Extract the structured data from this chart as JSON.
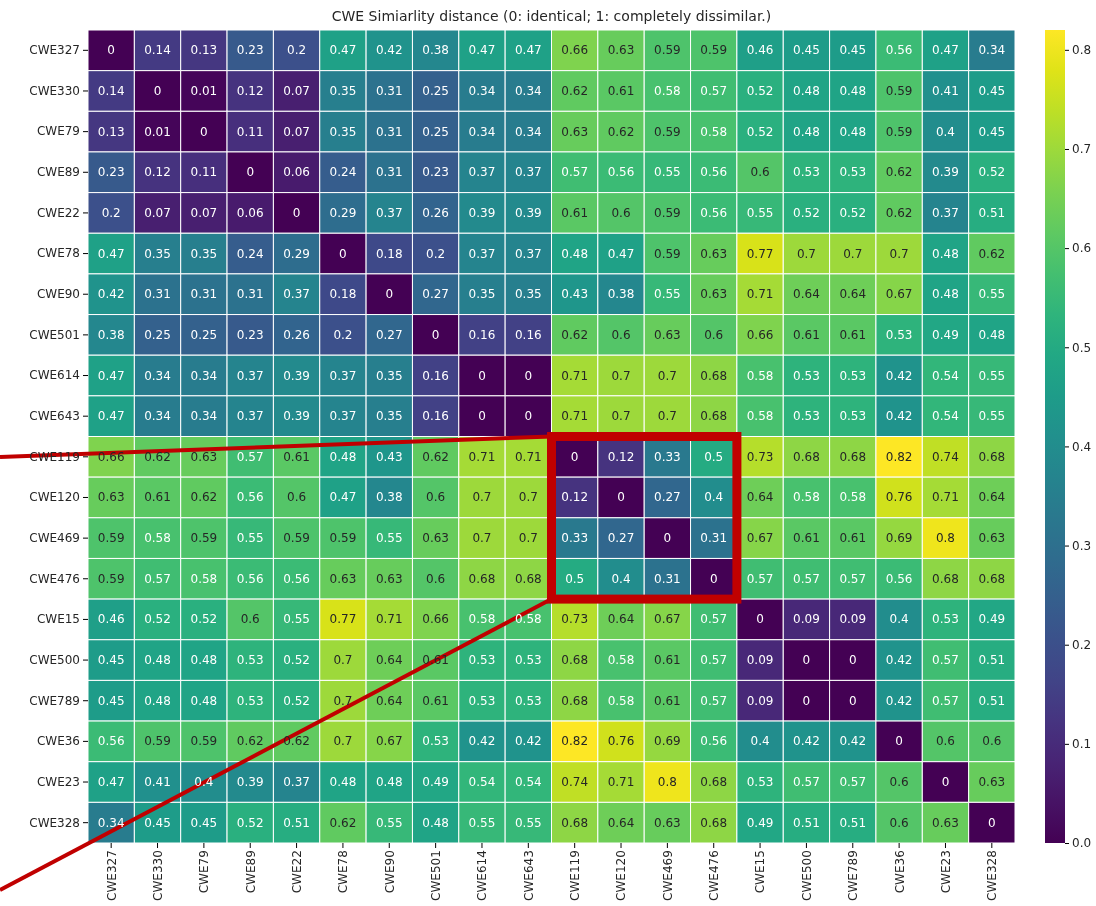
{
  "chart_data": {
    "type": "heatmap",
    "title": "CWE Simiarlity distance (0: identical; 1: completely dissimilar.)",
    "categories": [
      "CWE327",
      "CWE330",
      "CWE79",
      "CWE89",
      "CWE22",
      "CWE78",
      "CWE90",
      "CWE501",
      "CWE614",
      "CWE643",
      "CWE119",
      "CWE120",
      "CWE469",
      "CWE476",
      "CWE15",
      "CWE500",
      "CWE789",
      "CWE36",
      "CWE23",
      "CWE328"
    ],
    "y_categories": [
      "CWE327",
      "CWE330",
      "CWE79",
      "CWE89",
      "CWE22",
      "CWE78",
      "CWE90",
      "CWE501",
      "CWE614",
      "CWE643",
      "CWE119",
      "CWE120",
      "CWE469",
      "CWE476",
      "CWE15",
      "CWE500",
      "CWE789",
      "CWE36",
      "CWE23",
      "CWE328"
    ],
    "cells": [
      [
        0,
        0.14,
        0.13,
        0.23,
        0.2,
        0.47,
        0.42,
        0.38,
        0.47,
        0.47,
        0.66,
        0.63,
        0.59,
        0.59,
        0.46,
        0.45,
        0.45,
        0.56,
        0.47,
        0.34
      ],
      [
        0.14,
        0,
        0.01,
        0.12,
        0.07,
        0.35,
        0.31,
        0.25,
        0.34,
        0.34,
        0.62,
        0.61,
        0.58,
        0.57,
        0.52,
        0.48,
        0.48,
        0.59,
        0.41,
        0.45
      ],
      [
        0.13,
        0.01,
        0,
        0.11,
        0.07,
        0.35,
        0.31,
        0.25,
        0.34,
        0.34,
        0.63,
        0.62,
        0.59,
        0.58,
        0.52,
        0.48,
        0.48,
        0.59,
        0.4,
        0.45
      ],
      [
        0.23,
        0.12,
        0.11,
        0,
        0.06,
        0.24,
        0.31,
        0.23,
        0.37,
        0.37,
        0.57,
        0.56,
        0.55,
        0.56,
        0.6,
        0.53,
        0.53,
        0.62,
        0.39,
        0.52
      ],
      [
        0.2,
        0.07,
        0.07,
        0.06,
        0,
        0.29,
        0.37,
        0.26,
        0.39,
        0.39,
        0.61,
        0.6,
        0.59,
        0.56,
        0.55,
        0.52,
        0.52,
        0.62,
        0.37,
        0.51
      ],
      [
        0.47,
        0.35,
        0.35,
        0.24,
        0.29,
        0,
        0.18,
        0.2,
        0.37,
        0.37,
        0.48,
        0.47,
        0.59,
        0.63,
        0.77,
        0.7,
        0.7,
        0.7,
        0.48,
        0.62
      ],
      [
        0.42,
        0.31,
        0.31,
        0.31,
        0.37,
        0.18,
        0,
        0.27,
        0.35,
        0.35,
        0.43,
        0.38,
        0.55,
        0.63,
        0.71,
        0.64,
        0.64,
        0.67,
        0.48,
        0.55
      ],
      [
        0.38,
        0.25,
        0.25,
        0.23,
        0.26,
        0.2,
        0.27,
        0,
        0.16,
        0.16,
        0.62,
        0.6,
        0.63,
        0.6,
        0.66,
        0.61,
        0.61,
        0.53,
        0.49,
        0.48
      ],
      [
        0.47,
        0.34,
        0.34,
        0.37,
        0.39,
        0.37,
        0.35,
        0.16,
        0,
        0,
        0.71,
        0.7,
        0.7,
        0.68,
        0.58,
        0.53,
        0.53,
        0.42,
        0.54,
        0.55
      ],
      [
        0.47,
        0.34,
        0.34,
        0.37,
        0.39,
        0.37,
        0.35,
        0.16,
        0,
        0,
        0.71,
        0.7,
        0.7,
        0.68,
        0.58,
        0.53,
        0.53,
        0.42,
        0.54,
        0.55
      ],
      [
        0.66,
        0.62,
        0.63,
        0.57,
        0.61,
        0.48,
        0.43,
        0.62,
        0.71,
        0.71,
        0,
        0.12,
        0.33,
        0.5,
        0.73,
        0.68,
        0.68,
        0.82,
        0.74,
        0.68
      ],
      [
        0.63,
        0.61,
        0.62,
        0.56,
        0.6,
        0.47,
        0.38,
        0.6,
        0.7,
        0.7,
        0.12,
        0,
        0.27,
        0.4,
        0.64,
        0.58,
        0.58,
        0.76,
        0.71,
        0.64
      ],
      [
        0.59,
        0.58,
        0.59,
        0.55,
        0.59,
        0.59,
        0.55,
        0.63,
        0.7,
        0.7,
        0.33,
        0.27,
        0,
        0.31,
        0.67,
        0.61,
        0.61,
        0.69,
        0.8,
        0.63
      ],
      [
        0.59,
        0.57,
        0.58,
        0.56,
        0.56,
        0.63,
        0.63,
        0.6,
        0.68,
        0.68,
        0.5,
        0.4,
        0.31,
        0,
        0.57,
        0.57,
        0.57,
        0.56,
        0.68,
        0.68
      ],
      [
        0.46,
        0.52,
        0.52,
        0.6,
        0.55,
        0.77,
        0.71,
        0.66,
        0.58,
        0.58,
        0.73,
        0.64,
        0.67,
        0.57,
        0,
        0.09,
        0.09,
        0.4,
        0.53,
        0.49
      ],
      [
        0.45,
        0.48,
        0.48,
        0.53,
        0.52,
        0.7,
        0.64,
        0.61,
        0.53,
        0.53,
        0.68,
        0.58,
        0.61,
        0.57,
        0.09,
        0,
        0,
        0.42,
        0.57,
        0.51
      ],
      [
        0.45,
        0.48,
        0.48,
        0.53,
        0.52,
        0.7,
        0.64,
        0.61,
        0.53,
        0.53,
        0.68,
        0.58,
        0.61,
        0.57,
        0.09,
        0,
        0,
        0.42,
        0.57,
        0.51
      ],
      [
        0.56,
        0.59,
        0.59,
        0.62,
        0.62,
        0.7,
        0.67,
        0.53,
        0.42,
        0.42,
        0.82,
        0.76,
        0.69,
        0.56,
        0.4,
        0.42,
        0.42,
        0,
        0.6,
        0.6
      ],
      [
        0.47,
        0.41,
        0.4,
        0.39,
        0.37,
        0.48,
        0.48,
        0.49,
        0.54,
        0.54,
        0.74,
        0.71,
        0.8,
        0.68,
        0.53,
        0.57,
        0.57,
        0.6,
        0,
        0.63
      ],
      [
        0.34,
        0.45,
        0.45,
        0.52,
        0.51,
        0.62,
        0.55,
        0.48,
        0.55,
        0.55,
        0.68,
        0.64,
        0.63,
        0.68,
        0.49,
        0.51,
        0.51,
        0.6,
        0.63,
        0
      ]
    ],
    "data_labels": true,
    "clim": [
      0,
      0.82
    ],
    "cticks": [
      {
        "value": 0,
        "label": "0.0"
      },
      {
        "value": 0.1,
        "label": "0.1"
      },
      {
        "value": 0.2,
        "label": "0.2"
      },
      {
        "value": 0.3,
        "label": "0.3"
      },
      {
        "value": 0.4,
        "label": "0.4"
      },
      {
        "value": 0.5,
        "label": "0.5"
      },
      {
        "value": 0.6,
        "label": "0.6"
      },
      {
        "value": 0.7,
        "label": "0.7"
      },
      {
        "value": 0.8,
        "label": "0.8"
      }
    ]
  }
}
